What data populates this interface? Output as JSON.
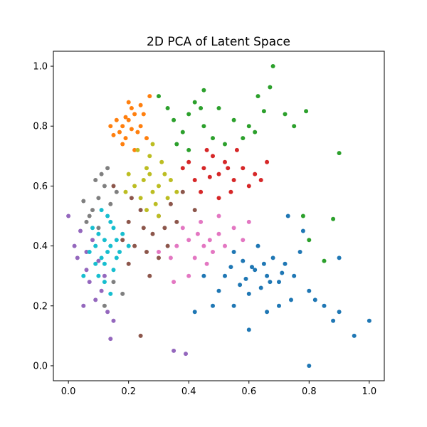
{
  "chart_data": {
    "type": "scatter",
    "title": "2D PCA of Latent Space",
    "xlabel": "",
    "ylabel": "",
    "xlim": [
      -0.05,
      1.05
    ],
    "ylim": [
      -0.05,
      1.05
    ],
    "xticks": [
      0.0,
      0.2,
      0.4,
      0.6,
      0.8,
      1.0
    ],
    "yticks": [
      0.0,
      0.2,
      0.4,
      0.6,
      0.8,
      1.0
    ],
    "xtick_labels": [
      "0.0",
      "0.2",
      "0.4",
      "0.6",
      "0.8",
      "1.0"
    ],
    "ytick_labels": [
      "0.0",
      "0.2",
      "0.4",
      "0.6",
      "0.8",
      "1.0"
    ],
    "grid": false,
    "legend": "none",
    "series": [
      {
        "color": "#1f77b4",
        "points": [
          [
            0.62,
            0.32
          ],
          [
            0.66,
            0.3
          ],
          [
            0.58,
            0.35
          ],
          [
            0.7,
            0.28
          ],
          [
            0.55,
            0.38
          ],
          [
            0.64,
            0.26
          ],
          [
            0.72,
            0.34
          ],
          [
            0.6,
            0.24
          ],
          [
            0.68,
            0.36
          ],
          [
            0.52,
            0.3
          ],
          [
            0.75,
            0.3
          ],
          [
            0.63,
            0.4
          ],
          [
            0.57,
            0.27
          ],
          [
            0.8,
            0.25
          ],
          [
            0.85,
            0.2
          ],
          [
            0.9,
            0.18
          ],
          [
            0.95,
            0.1
          ],
          [
            1.0,
            0.15
          ],
          [
            0.8,
            0.0
          ],
          [
            0.88,
            0.15
          ],
          [
            0.78,
            0.45
          ],
          [
            0.73,
            0.5
          ],
          [
            0.82,
            0.22
          ],
          [
            0.9,
            0.36
          ],
          [
            0.6,
            0.12
          ],
          [
            0.55,
            0.2
          ],
          [
            0.5,
            0.25
          ],
          [
            0.45,
            0.3
          ],
          [
            0.48,
            0.2
          ],
          [
            0.42,
            0.18
          ],
          [
            0.66,
            0.18
          ],
          [
            0.7,
            0.2
          ],
          [
            0.74,
            0.22
          ],
          [
            0.77,
            0.38
          ],
          [
            0.61,
            0.33
          ],
          [
            0.59,
            0.29
          ],
          [
            0.65,
            0.34
          ],
          [
            0.67,
            0.28
          ],
          [
            0.54,
            0.33
          ],
          [
            0.71,
            0.31
          ]
        ]
      },
      {
        "color": "#ff7f0e",
        "points": [
          [
            0.18,
            0.8
          ],
          [
            0.2,
            0.82
          ],
          [
            0.22,
            0.84
          ],
          [
            0.17,
            0.78
          ],
          [
            0.21,
            0.86
          ],
          [
            0.24,
            0.8
          ],
          [
            0.19,
            0.76
          ],
          [
            0.23,
            0.78
          ],
          [
            0.16,
            0.82
          ],
          [
            0.25,
            0.84
          ],
          [
            0.2,
            0.88
          ],
          [
            0.27,
            0.9
          ],
          [
            0.14,
            0.8
          ],
          [
            0.18,
            0.74
          ],
          [
            0.22,
            0.72
          ],
          [
            0.26,
            0.76
          ],
          [
            0.15,
            0.77
          ],
          [
            0.21,
            0.79
          ],
          [
            0.19,
            0.83
          ],
          [
            0.24,
            0.87
          ]
        ]
      },
      {
        "color": "#2ca02c",
        "points": [
          [
            0.35,
            0.82
          ],
          [
            0.4,
            0.84
          ],
          [
            0.45,
            0.8
          ],
          [
            0.38,
            0.78
          ],
          [
            0.5,
            0.86
          ],
          [
            0.42,
            0.88
          ],
          [
            0.55,
            0.82
          ],
          [
            0.48,
            0.76
          ],
          [
            0.33,
            0.86
          ],
          [
            0.6,
            0.8
          ],
          [
            0.65,
            0.85
          ],
          [
            0.45,
            0.92
          ],
          [
            0.3,
            0.9
          ],
          [
            0.68,
            1.0
          ],
          [
            0.67,
            0.93
          ],
          [
            0.63,
            0.9
          ],
          [
            0.72,
            0.84
          ],
          [
            0.75,
            0.8
          ],
          [
            0.79,
            0.85
          ],
          [
            0.9,
            0.71
          ],
          [
            0.88,
            0.49
          ],
          [
            0.85,
            0.35
          ],
          [
            0.8,
            0.42
          ],
          [
            0.78,
            0.5
          ],
          [
            0.4,
            0.72
          ],
          [
            0.52,
            0.74
          ],
          [
            0.36,
            0.74
          ],
          [
            0.58,
            0.76
          ],
          [
            0.44,
            0.86
          ],
          [
            0.62,
            0.78
          ]
        ]
      },
      {
        "color": "#d62728",
        "points": [
          [
            0.45,
            0.66
          ],
          [
            0.5,
            0.64
          ],
          [
            0.48,
            0.7
          ],
          [
            0.55,
            0.62
          ],
          [
            0.52,
            0.68
          ],
          [
            0.58,
            0.66
          ],
          [
            0.42,
            0.62
          ],
          [
            0.6,
            0.6
          ],
          [
            0.46,
            0.72
          ],
          [
            0.54,
            0.58
          ],
          [
            0.62,
            0.64
          ],
          [
            0.4,
            0.68
          ],
          [
            0.56,
            0.72
          ],
          [
            0.5,
            0.56
          ],
          [
            0.64,
            0.62
          ],
          [
            0.38,
            0.66
          ],
          [
            0.53,
            0.66
          ],
          [
            0.47,
            0.63
          ],
          [
            0.66,
            0.68
          ],
          [
            0.44,
            0.58
          ]
        ]
      },
      {
        "color": "#9467bd",
        "points": [
          [
            0.08,
            0.42
          ],
          [
            0.06,
            0.38
          ],
          [
            0.1,
            0.35
          ],
          [
            0.04,
            0.45
          ],
          [
            0.12,
            0.3
          ],
          [
            0.07,
            0.28
          ],
          [
            0.03,
            0.36
          ],
          [
            0.09,
            0.22
          ],
          [
            0.13,
            0.18
          ],
          [
            0.0,
            0.5
          ],
          [
            0.02,
            0.4
          ],
          [
            0.11,
            0.25
          ],
          [
            0.15,
            0.15
          ],
          [
            0.05,
            0.2
          ],
          [
            0.35,
            0.05
          ],
          [
            0.39,
            0.04
          ],
          [
            0.14,
            0.09
          ],
          [
            0.06,
            0.32
          ]
        ]
      },
      {
        "color": "#8c564b",
        "points": [
          [
            0.2,
            0.48
          ],
          [
            0.25,
            0.46
          ],
          [
            0.3,
            0.5
          ],
          [
            0.22,
            0.4
          ],
          [
            0.28,
            0.44
          ],
          [
            0.18,
            0.42
          ],
          [
            0.32,
            0.46
          ],
          [
            0.24,
            0.52
          ],
          [
            0.26,
            0.38
          ],
          [
            0.34,
            0.54
          ],
          [
            0.36,
            0.48
          ],
          [
            0.2,
            0.34
          ],
          [
            0.3,
            0.36
          ],
          [
            0.15,
            0.6
          ],
          [
            0.38,
            0.58
          ],
          [
            0.42,
            0.52
          ],
          [
            0.27,
            0.3
          ],
          [
            0.21,
            0.56
          ],
          [
            0.33,
            0.4
          ],
          [
            0.24,
            0.1
          ]
        ]
      },
      {
        "color": "#e377c2",
        "points": [
          [
            0.4,
            0.42
          ],
          [
            0.45,
            0.4
          ],
          [
            0.5,
            0.44
          ],
          [
            0.42,
            0.36
          ],
          [
            0.48,
            0.38
          ],
          [
            0.38,
            0.46
          ],
          [
            0.52,
            0.4
          ],
          [
            0.44,
            0.48
          ],
          [
            0.36,
            0.4
          ],
          [
            0.55,
            0.46
          ],
          [
            0.46,
            0.34
          ],
          [
            0.34,
            0.36
          ],
          [
            0.58,
            0.42
          ],
          [
            0.4,
            0.3
          ],
          [
            0.5,
            0.5
          ],
          [
            0.3,
            0.38
          ],
          [
            0.43,
            0.44
          ],
          [
            0.47,
            0.42
          ],
          [
            0.35,
            0.28
          ],
          [
            0.6,
            0.48
          ]
        ]
      },
      {
        "color": "#7f7f7f",
        "points": [
          [
            0.08,
            0.52
          ],
          [
            0.1,
            0.56
          ],
          [
            0.06,
            0.48
          ],
          [
            0.12,
            0.6
          ],
          [
            0.14,
            0.54
          ],
          [
            0.09,
            0.62
          ],
          [
            0.05,
            0.55
          ],
          [
            0.16,
            0.58
          ],
          [
            0.11,
            0.64
          ],
          [
            0.07,
            0.5
          ],
          [
            0.13,
            0.66
          ],
          [
            0.1,
            0.46
          ],
          [
            0.15,
            0.28
          ],
          [
            0.18,
            0.24
          ],
          [
            0.12,
            0.2
          ]
        ]
      },
      {
        "color": "#bcbd22",
        "points": [
          [
            0.25,
            0.62
          ],
          [
            0.28,
            0.58
          ],
          [
            0.26,
            0.66
          ],
          [
            0.3,
            0.6
          ],
          [
            0.24,
            0.56
          ],
          [
            0.32,
            0.64
          ],
          [
            0.22,
            0.6
          ],
          [
            0.27,
            0.7
          ],
          [
            0.29,
            0.54
          ],
          [
            0.34,
            0.62
          ],
          [
            0.2,
            0.64
          ],
          [
            0.31,
            0.68
          ],
          [
            0.23,
            0.72
          ],
          [
            0.36,
            0.58
          ],
          [
            0.26,
            0.52
          ],
          [
            0.33,
            0.56
          ],
          [
            0.28,
            0.74
          ],
          [
            0.19,
            0.58
          ],
          [
            0.27,
            0.64
          ],
          [
            0.3,
            0.5
          ]
        ]
      },
      {
        "color": "#17becf",
        "points": [
          [
            0.12,
            0.42
          ],
          [
            0.14,
            0.4
          ],
          [
            0.1,
            0.44
          ],
          [
            0.13,
            0.38
          ],
          [
            0.15,
            0.46
          ],
          [
            0.11,
            0.36
          ],
          [
            0.16,
            0.42
          ],
          [
            0.09,
            0.4
          ],
          [
            0.14,
            0.48
          ],
          [
            0.12,
            0.34
          ],
          [
            0.17,
            0.38
          ],
          [
            0.08,
            0.46
          ],
          [
            0.13,
            0.5
          ],
          [
            0.15,
            0.32
          ],
          [
            0.1,
            0.3
          ],
          [
            0.18,
            0.44
          ],
          [
            0.11,
            0.52
          ],
          [
            0.16,
            0.36
          ],
          [
            0.07,
            0.38
          ],
          [
            0.12,
            0.28
          ],
          [
            0.14,
            0.24
          ],
          [
            0.05,
            0.3
          ],
          [
            0.2,
            0.4
          ],
          [
            0.09,
            0.34
          ]
        ]
      }
    ]
  }
}
